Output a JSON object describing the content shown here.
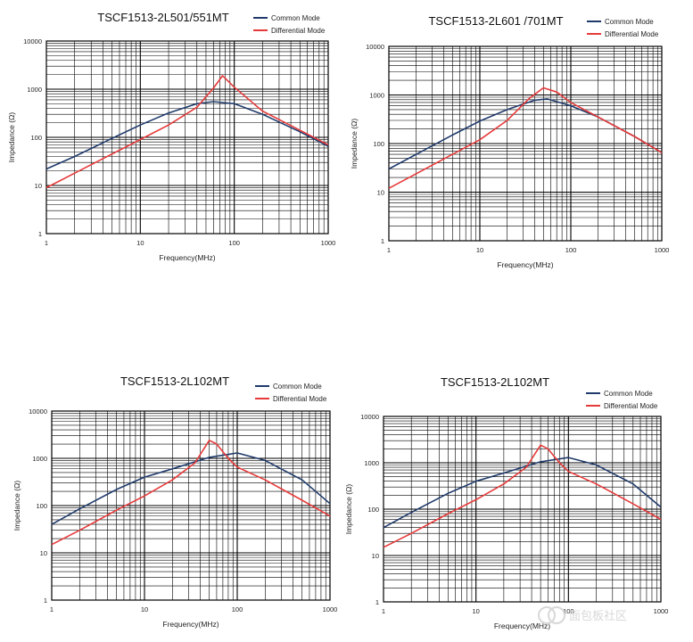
{
  "chart_data": [
    {
      "type": "line",
      "title": "TSCF1513-2L501/551MT",
      "xlabel": "Frequency(MHz)",
      "ylabel": "Impedance (Ω)",
      "xscale": "log",
      "yscale": "log",
      "xlim": [
        1,
        1000
      ],
      "ylim": [
        1,
        10000
      ],
      "x_ticks": [
        "1",
        "10",
        "100",
        "1000"
      ],
      "y_ticks": [
        "1",
        "10",
        "100",
        "1000",
        "10000"
      ],
      "grid": true,
      "legend": "top-right",
      "series": [
        {
          "name": "Common Mode",
          "color": "#1f3a6b",
          "x": [
            1,
            2,
            5,
            10,
            20,
            40,
            60,
            100,
            200,
            500,
            1000
          ],
          "y": [
            22,
            40,
            95,
            180,
            320,
            500,
            550,
            500,
            300,
            130,
            65
          ]
        },
        {
          "name": "Differential Mode",
          "color": "#e63a3a",
          "x": [
            1,
            2,
            5,
            10,
            20,
            40,
            60,
            75,
            100,
            200,
            500,
            1000
          ],
          "y": [
            9,
            18,
            45,
            90,
            180,
            420,
            1050,
            1900,
            1100,
            350,
            140,
            70
          ]
        }
      ]
    },
    {
      "type": "line",
      "title": "TSCF1513-2L601 /701MT",
      "xlabel": "Frequency(MHz)",
      "ylabel": "Impedance (Ω)",
      "xscale": "log",
      "yscale": "log",
      "xlim": [
        1,
        1000
      ],
      "ylim": [
        1,
        10000
      ],
      "x_ticks": [
        "1",
        "10",
        "100",
        "1000"
      ],
      "y_ticks": [
        "1",
        "10",
        "100",
        "1000",
        "10000"
      ],
      "grid": true,
      "legend": "top-right",
      "series": [
        {
          "name": "Common Mode",
          "color": "#1f3a6b",
          "x": [
            1,
            2,
            5,
            10,
            20,
            40,
            55,
            100,
            200,
            500,
            1000
          ],
          "y": [
            30,
            60,
            150,
            290,
            500,
            780,
            830,
            600,
            350,
            140,
            65
          ]
        },
        {
          "name": "Differential Mode",
          "color": "#e63a3a",
          "x": [
            1,
            2,
            5,
            10,
            20,
            35,
            50,
            70,
            100,
            200,
            500,
            1000
          ],
          "y": [
            12,
            24,
            60,
            120,
            300,
            850,
            1400,
            1150,
            700,
            350,
            140,
            65
          ]
        }
      ]
    },
    {
      "type": "line",
      "title": "TSCF1513-2L102MT",
      "xlabel": "Frequency(MHz)",
      "ylabel": "Impedance (Ω)",
      "xscale": "log",
      "yscale": "log",
      "xlim": [
        1,
        1000
      ],
      "ylim": [
        1,
        10000
      ],
      "x_ticks": [
        "1",
        "10",
        "100",
        "1000"
      ],
      "y_ticks": [
        "1",
        "10",
        "100",
        "1000",
        "10000"
      ],
      "grid": true,
      "legend": "top-right",
      "series": [
        {
          "name": "Common Mode",
          "color": "#1f3a6b",
          "x": [
            1,
            2,
            5,
            10,
            20,
            50,
            100,
            200,
            500,
            1000
          ],
          "y": [
            40,
            85,
            220,
            400,
            600,
            1050,
            1300,
            900,
            350,
            110
          ]
        },
        {
          "name": "Differential Mode",
          "color": "#e63a3a",
          "x": [
            1,
            2,
            5,
            10,
            20,
            35,
            50,
            60,
            80,
            100,
            200,
            500,
            1000
          ],
          "y": [
            15,
            30,
            80,
            160,
            350,
            800,
            2400,
            2000,
            1000,
            650,
            350,
            130,
            60
          ]
        }
      ]
    },
    {
      "type": "line",
      "title": "TSCF1513-2L102MT",
      "xlabel": "Frequency(MHz)",
      "ylabel": "Impedance (Ω)",
      "xscale": "log",
      "yscale": "log",
      "xlim": [
        1,
        1000
      ],
      "ylim": [
        1,
        10000
      ],
      "x_ticks": [
        "1",
        "10",
        "100",
        "1000"
      ],
      "y_ticks": [
        "1",
        "10",
        "100",
        "1000",
        "10000"
      ],
      "grid": true,
      "legend": "top-right",
      "series": [
        {
          "name": "Common Mode",
          "color": "#1f3a6b",
          "x": [
            1,
            2,
            5,
            10,
            20,
            50,
            100,
            200,
            500,
            1000
          ],
          "y": [
            40,
            85,
            220,
            400,
            600,
            1050,
            1300,
            900,
            350,
            110
          ]
        },
        {
          "name": "Differential Mode",
          "color": "#e63a3a",
          "x": [
            1,
            2,
            5,
            10,
            20,
            35,
            50,
            60,
            80,
            100,
            200,
            500,
            1000
          ],
          "y": [
            15,
            30,
            80,
            160,
            350,
            800,
            2400,
            2000,
            1000,
            650,
            350,
            130,
            60
          ]
        }
      ]
    }
  ],
  "watermark": {
    "text": "面包板社区",
    "color": "#d8d8d8"
  }
}
